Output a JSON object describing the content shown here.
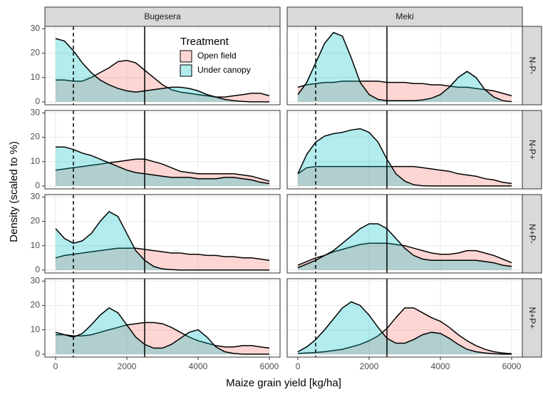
{
  "chart_data": {
    "type": "area",
    "x_label": "Maize grain yield [kg/ha]",
    "y_label": "Density (scaled to %)",
    "legend_title": "Treatment",
    "legend_position": "top-left",
    "columns": [
      "Bugesera",
      "Meki"
    ],
    "rows": [
      "N-P-",
      "N-P+",
      "N+P-",
      "N+P+"
    ],
    "series": [
      {
        "name": "Open field",
        "color": "#F8766D"
      },
      {
        "name": "Under canopy",
        "color": "#00BFC4"
      }
    ],
    "x": [
      0,
      250,
      500,
      750,
      1000,
      1250,
      1500,
      1750,
      2000,
      2250,
      2500,
      2750,
      3000,
      3250,
      3500,
      3750,
      4000,
      4250,
      4500,
      4750,
      5000,
      5250,
      5500,
      5750,
      6000
    ],
    "xlim": [
      -300,
      6300
    ],
    "xticks": [
      0,
      2000,
      4000,
      6000
    ],
    "ylim": [
      -1.2,
      31
    ],
    "yticks": [
      0,
      10,
      20,
      30
    ],
    "grid": true,
    "vlines": [
      {
        "value": 500,
        "linetype": "dashed"
      },
      {
        "value": 2500,
        "linetype": "solid"
      }
    ],
    "panels": [
      [
        [
          [
            9,
            9,
            8.5,
            8.5,
            10,
            12,
            14,
            16.5,
            17,
            16,
            13,
            10,
            7,
            5,
            4,
            3.5,
            3,
            2.5,
            2,
            2,
            2.5,
            3,
            3.5,
            3.5,
            2.5
          ],
          [
            26,
            25,
            21,
            16,
            12,
            9,
            7,
            5.5,
            4.5,
            4,
            4.5,
            5,
            5.5,
            6,
            6,
            5.5,
            4.5,
            3,
            2,
            1,
            0.5,
            0.2,
            0,
            0,
            0
          ]
        ],
        [
          [
            6,
            7,
            7.5,
            8,
            8,
            8.5,
            8.5,
            8.5,
            8.5,
            8.5,
            8,
            8,
            8,
            7.5,
            7.5,
            7,
            7,
            6.5,
            6,
            6,
            5.5,
            5,
            4.5,
            3.5,
            2.5
          ],
          [
            3,
            8,
            16,
            24,
            28.5,
            27,
            18,
            8,
            3,
            1,
            0.5,
            0.5,
            0.5,
            0.5,
            0.8,
            1.5,
            3,
            6,
            10,
            12.5,
            10,
            5,
            2,
            0.5,
            0.1
          ]
        ]
      ],
      [
        [
          [
            6.5,
            7,
            7.5,
            8,
            8.5,
            9,
            9.5,
            10,
            10.5,
            11,
            11,
            10,
            9,
            7.5,
            6,
            5.5,
            5,
            5,
            5,
            5,
            5,
            4.5,
            4,
            3,
            2
          ],
          [
            16,
            16,
            15,
            13.5,
            12.5,
            11,
            9.5,
            8,
            6.5,
            5.5,
            5,
            4.5,
            4,
            3.5,
            3.5,
            3.5,
            3,
            3,
            3,
            3.5,
            3.5,
            3,
            2.5,
            1.5,
            1
          ]
        ],
        [
          [
            5,
            7.5,
            8,
            8,
            8,
            8,
            8,
            8,
            8,
            8,
            8,
            8,
            8,
            8,
            7.5,
            7,
            6.5,
            6,
            5,
            4.5,
            4,
            3,
            2.5,
            1.5,
            1
          ],
          [
            5,
            13,
            18,
            20.5,
            21.5,
            22,
            23,
            23.5,
            22,
            18,
            11,
            5,
            2,
            0.5,
            0.1,
            0,
            0,
            0,
            0,
            0,
            0,
            0,
            0,
            0,
            0
          ]
        ]
      ],
      [
        [
          [
            5,
            6,
            6.5,
            7,
            7.5,
            8,
            8.5,
            9,
            9,
            9,
            8.5,
            8,
            7.5,
            7,
            7,
            6.5,
            6.5,
            6,
            6,
            5.5,
            5.5,
            5,
            5,
            4.5,
            4
          ],
          [
            17,
            13,
            11,
            12,
            15,
            20,
            24,
            22,
            15,
            8,
            4,
            1.5,
            0.5,
            0.2,
            0,
            0,
            0,
            0,
            0,
            0,
            0,
            0,
            0,
            0,
            0
          ]
        ],
        [
          [
            2,
            3.5,
            5,
            6,
            7.5,
            8.5,
            9.5,
            10.5,
            11,
            11,
            11,
            10.5,
            10,
            9,
            8,
            7,
            6.5,
            6.5,
            7,
            8,
            8,
            7,
            6,
            4.5,
            3
          ],
          [
            1,
            2.5,
            4,
            6,
            8,
            11,
            14,
            17,
            19,
            19,
            17,
            13,
            9,
            6,
            4.5,
            4,
            4,
            4,
            4,
            4,
            4,
            3.5,
            3,
            2,
            1.5
          ]
        ]
      ],
      [
        [
          [
            8,
            8,
            7.5,
            7.5,
            8,
            9,
            10,
            11,
            12,
            12.5,
            13,
            13,
            12.5,
            11,
            9,
            7,
            5.5,
            4.5,
            3.5,
            3,
            3,
            3.5,
            3.5,
            3,
            2.5
          ],
          [
            9,
            8,
            7,
            8.5,
            12,
            16,
            19,
            17,
            12,
            7,
            4,
            2.5,
            2.5,
            4,
            6.5,
            9,
            10,
            7,
            3,
            1,
            0.3,
            0,
            0,
            0,
            0
          ]
        ],
        [
          [
            0.3,
            0.5,
            0.7,
            1,
            1.5,
            2,
            3,
            4,
            5.5,
            7.5,
            10.5,
            15,
            19,
            19,
            17,
            15,
            13.5,
            11,
            8,
            5.5,
            3.5,
            2,
            1,
            0.5,
            0.2
          ],
          [
            1,
            3,
            6,
            10,
            14.5,
            19,
            21.5,
            20,
            16,
            11,
            6.5,
            4.5,
            4.5,
            6,
            8,
            9,
            8.5,
            6.5,
            4,
            2,
            1,
            0.5,
            0.2,
            0,
            0
          ]
        ]
      ]
    ]
  }
}
